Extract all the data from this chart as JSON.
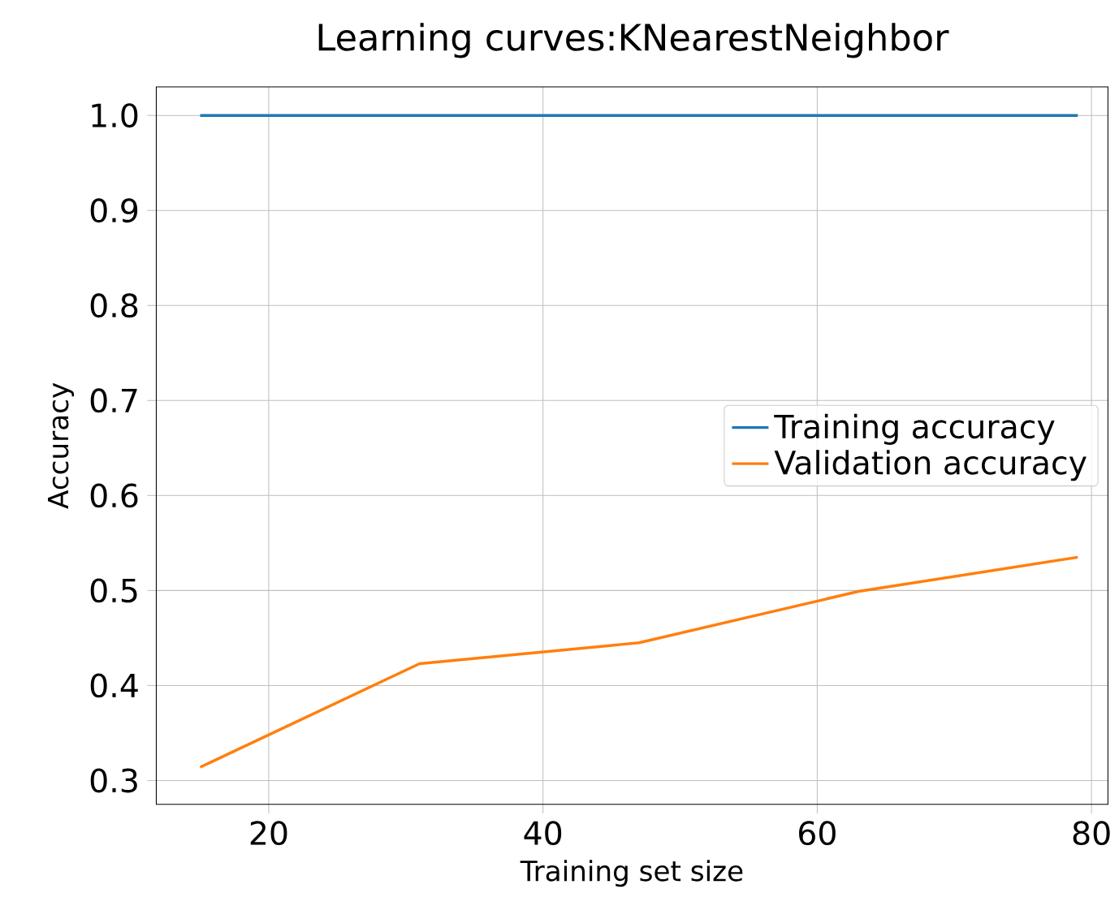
{
  "chart_data": {
    "type": "line",
    "title": "Learning curves:KNearestNeighbor",
    "xlabel": "Training set size",
    "ylabel": "Accuracy",
    "x": [
      15,
      31,
      47,
      63,
      79
    ],
    "series": [
      {
        "name": "Training accuracy",
        "color": "#1f77b4",
        "values": [
          1.0,
          1.0,
          1.0,
          1.0,
          1.0
        ]
      },
      {
        "name": "Validation accuracy",
        "color": "#ff7f0e",
        "values": [
          0.314,
          0.423,
          0.445,
          0.499,
          0.535
        ]
      }
    ],
    "xlim": [
      11.8,
      81.2
    ],
    "ylim": [
      0.275,
      1.03
    ],
    "xticks": [
      20,
      40,
      60,
      80
    ],
    "yticks": [
      {
        "value": 0.3,
        "label": "0.3"
      },
      {
        "value": 0.4,
        "label": "0.4"
      },
      {
        "value": 0.5,
        "label": "0.5"
      },
      {
        "value": 0.6,
        "label": "0.6"
      },
      {
        "value": 0.7,
        "label": "0.7"
      },
      {
        "value": 0.8,
        "label": "0.8"
      },
      {
        "value": 0.9,
        "label": "0.9"
      },
      {
        "value": 1.0,
        "label": "1.0"
      }
    ],
    "grid": true,
    "legend": "right"
  }
}
